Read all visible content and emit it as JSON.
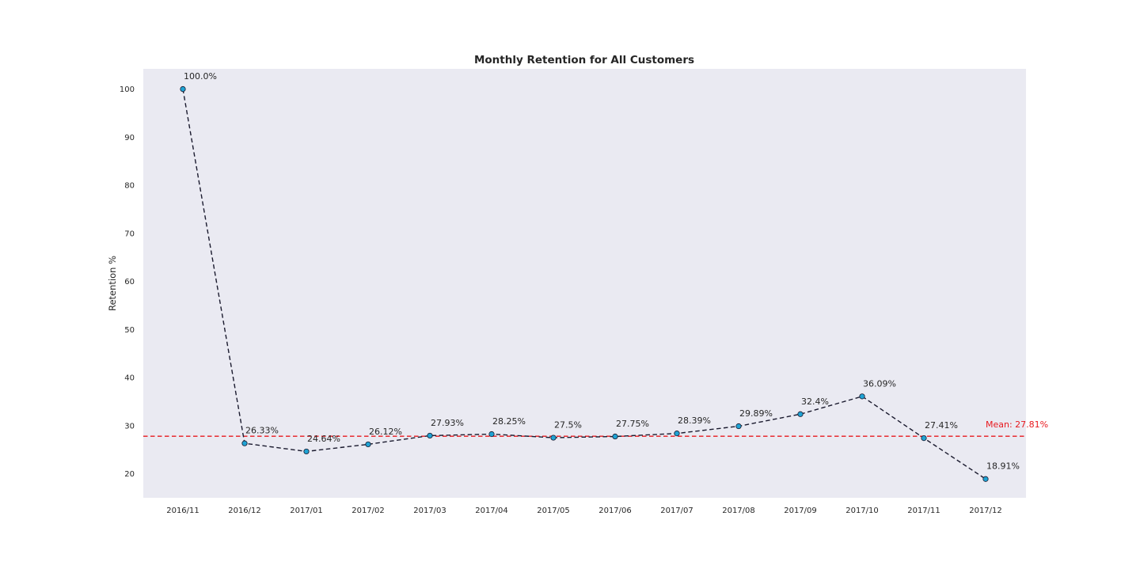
{
  "chart_data": {
    "type": "line",
    "title": "Monthly Retention for All Customers",
    "xlabel": "",
    "ylabel": "Retention %",
    "categories": [
      "2016/11",
      "2016/12",
      "2017/01",
      "2017/02",
      "2017/03",
      "2017/04",
      "2017/05",
      "2017/06",
      "2017/07",
      "2017/08",
      "2017/09",
      "2017/10",
      "2017/11",
      "2017/12"
    ],
    "series": [
      {
        "values": [
          100.0,
          26.33,
          24.64,
          26.12,
          27.93,
          28.25,
          27.5,
          27.75,
          28.39,
          29.89,
          32.4,
          36.09,
          27.41,
          18.91
        ],
        "labels": [
          "100.0%",
          "26.33%",
          "24.64%",
          "26.12%",
          "27.93%",
          "28.25%",
          "27.5%",
          "27.75%",
          "28.39%",
          "29.89%",
          "32.4%",
          "36.09%",
          "27.41%",
          "18.91%"
        ],
        "line_color": "#1a1a2e",
        "line_style": "dashed",
        "marker_color": "#1fa3d4",
        "marker_edge_color": "#1a1a2e"
      }
    ],
    "yticks": [
      20,
      30,
      40,
      50,
      60,
      70,
      80,
      90,
      100
    ],
    "ylim": [
      15.0,
      104.2
    ],
    "mean": {
      "value": 27.81,
      "label": "Mean: 27.81%",
      "color": "#e8191e",
      "line_style": "dashed"
    },
    "background": "#eaeaf2",
    "grid": false
  }
}
